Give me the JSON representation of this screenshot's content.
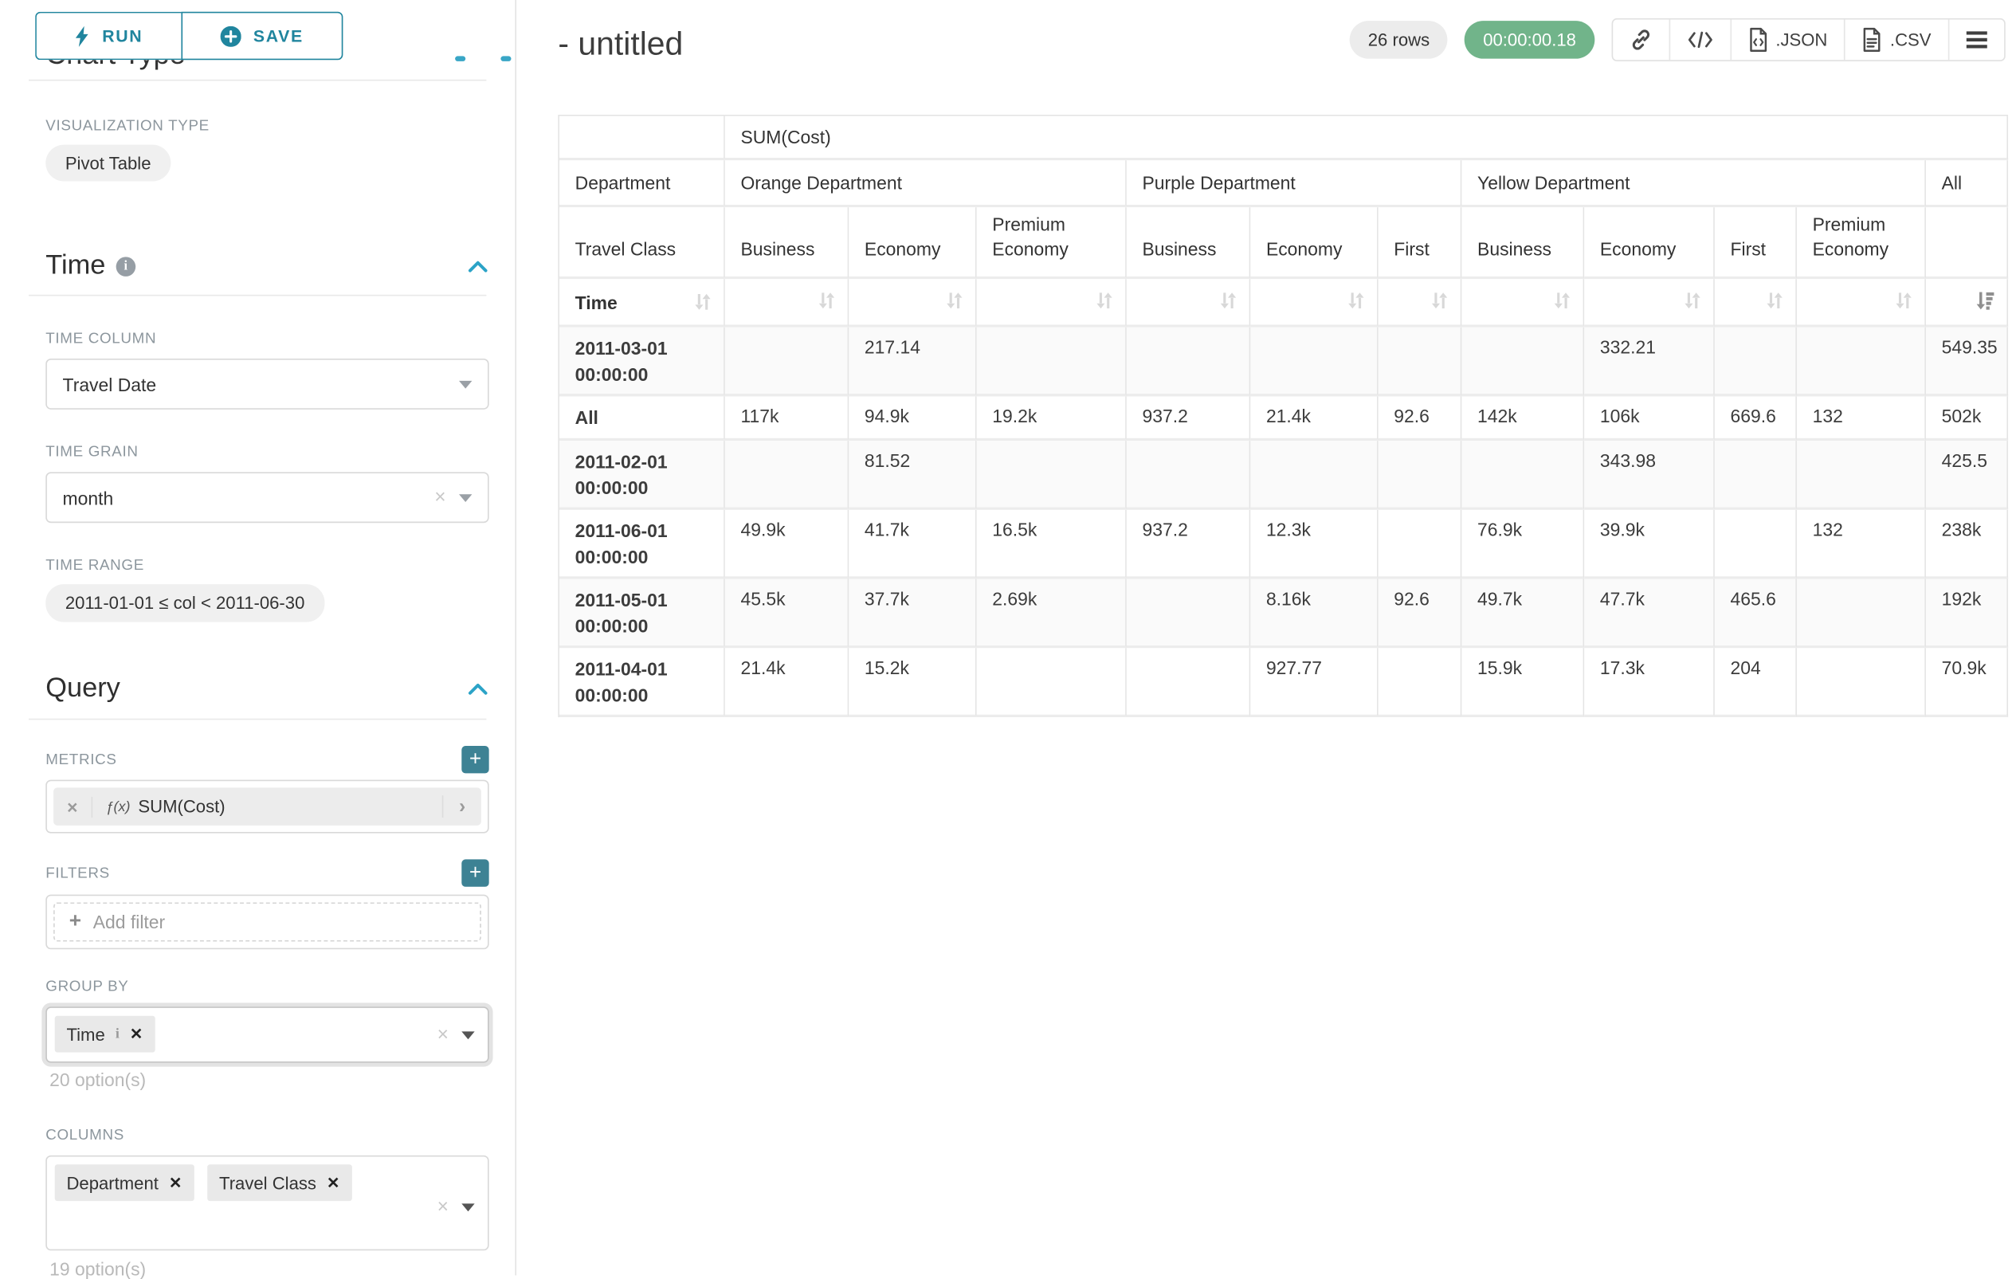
{
  "sidebar": {
    "run_label": "RUN",
    "save_label": "SAVE",
    "chart_type_heading": "Chart Type",
    "viz": {
      "label": "VISUALIZATION TYPE",
      "value": "Pivot Table"
    },
    "time": {
      "title": "Time",
      "column_label": "TIME COLUMN",
      "column_value": "Travel Date",
      "grain_label": "TIME GRAIN",
      "grain_value": "month",
      "range_label": "TIME RANGE",
      "range_value": "2011-01-01 ≤ col < 2011-06-30"
    },
    "query": {
      "title": "Query",
      "metrics_label": "METRICS",
      "metric_fx": "ƒ(x)",
      "metric_name": "SUM(Cost)",
      "filters_label": "FILTERS",
      "add_filter_label": "Add filter",
      "group_by_label": "GROUP BY",
      "group_by_tag": "Time",
      "group_by_hint": "20 option(s)",
      "columns_label": "COLUMNS",
      "columns_tags": [
        "Department",
        "Travel Class"
      ],
      "columns_hint": "19 option(s)"
    }
  },
  "header": {
    "title": "- untitled",
    "row_count": "26 rows",
    "duration": "00:00:00.18",
    "export_json_label": ".JSON",
    "export_csv_label": ".CSV"
  },
  "main": {
    "table": {
      "metric_header": "SUM(Cost)",
      "corner": {
        "department": "Department",
        "travel_class": "Travel Class",
        "time": "Time"
      },
      "dept_groups": [
        {
          "label": "Orange Department",
          "span": 3
        },
        {
          "label": "Purple Department",
          "span": 3
        },
        {
          "label": "Yellow Department",
          "span": 4
        },
        {
          "label": "All",
          "span": 1
        }
      ],
      "class_headers": [
        "Business",
        "Economy",
        "Premium Economy",
        "Business",
        "Economy",
        "First",
        "Business",
        "Economy",
        "First",
        "Premium Economy",
        ""
      ],
      "rows": [
        {
          "label": "2011-03-01 00:00:00",
          "values": [
            "",
            "217.14",
            "",
            "",
            "",
            "",
            "",
            "332.21",
            "",
            "",
            "549.35"
          ]
        },
        {
          "label": "All",
          "values": [
            "117k",
            "94.9k",
            "19.2k",
            "937.2",
            "21.4k",
            "92.6",
            "142k",
            "106k",
            "669.6",
            "132",
            "502k"
          ]
        },
        {
          "label": "2011-02-01 00:00:00",
          "values": [
            "",
            "81.52",
            "",
            "",
            "",
            "",
            "",
            "343.98",
            "",
            "",
            "425.5"
          ]
        },
        {
          "label": "2011-06-01 00:00:00",
          "values": [
            "49.9k",
            "41.7k",
            "16.5k",
            "937.2",
            "12.3k",
            "",
            "76.9k",
            "39.9k",
            "",
            "132",
            "238k"
          ]
        },
        {
          "label": "2011-05-01 00:00:00",
          "values": [
            "45.5k",
            "37.7k",
            "2.69k",
            "",
            "8.16k",
            "92.6",
            "49.7k",
            "47.7k",
            "465.6",
            "",
            "192k"
          ]
        },
        {
          "label": "2011-04-01 00:00:00",
          "values": [
            "21.4k",
            "15.2k",
            "",
            "",
            "927.77",
            "",
            "15.9k",
            "17.3k",
            "204",
            "",
            "70.9k"
          ]
        }
      ]
    }
  }
}
